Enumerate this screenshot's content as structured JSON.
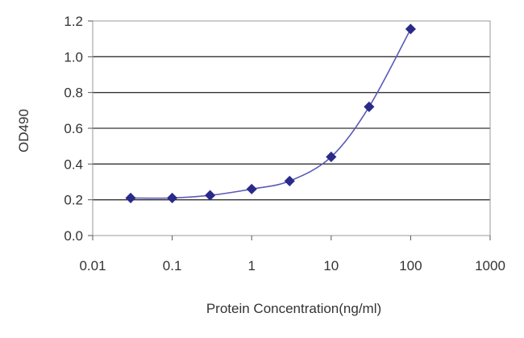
{
  "chart_data": {
    "type": "line",
    "xlabel": "Protein Concentration(ng/ml)",
    "ylabel": "OD490",
    "x_scale": "log",
    "xlim": [
      0.01,
      1000
    ],
    "ylim": [
      0.0,
      1.2
    ],
    "x_ticks": [
      "0.01",
      "0.1",
      "1",
      "10",
      "100",
      "1000"
    ],
    "y_ticks": [
      "0.0",
      "0.2",
      "0.4",
      "0.6",
      "0.8",
      "1.0",
      "1.2"
    ],
    "grid": "horizontal",
    "series": [
      {
        "x": [
          0.03,
          0.1,
          0.3,
          1,
          3,
          10,
          30,
          100
        ],
        "y": [
          0.21,
          0.21,
          0.225,
          0.26,
          0.305,
          0.44,
          0.72,
          1.155
        ],
        "color": "#2a2a8a",
        "marker": "diamond"
      }
    ]
  }
}
